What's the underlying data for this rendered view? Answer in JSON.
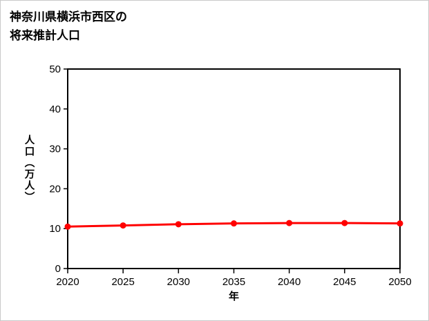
{
  "page": {
    "title_line1": "神奈川県横浜市西区の",
    "title_line2": "将来推計人口"
  },
  "chart_data": {
    "type": "line",
    "title": "神奈川県横浜市西区の将来推計人口",
    "xlabel": "年",
    "ylabel": "人口（万人）",
    "categories": [
      "2020",
      "2025",
      "2030",
      "2035",
      "2040",
      "2045",
      "2050"
    ],
    "series": [
      {
        "name": "将来推計人口",
        "values": [
          10.5,
          10.8,
          11.1,
          11.3,
          11.4,
          11.4,
          11.3
        ]
      }
    ],
    "ylim": [
      0,
      50
    ],
    "yticks": [
      0,
      10,
      20,
      30,
      40,
      50
    ],
    "grid": false,
    "legend_position": "none",
    "line_color": "#ff0000",
    "marker": "circle",
    "plot_border_color": "#000000"
  }
}
